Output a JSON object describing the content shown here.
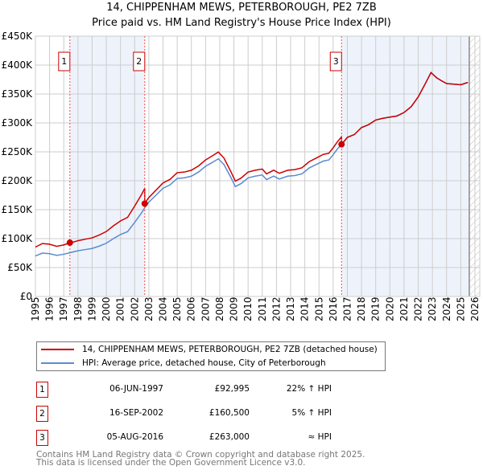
{
  "chart_data": {
    "type": "line",
    "title": "14, CHIPPENHAM MEWS, PETERBOROUGH, PE2 7ZB",
    "subtitle": "Price paid vs. HM Land Registry's House Price Index (HPI)",
    "xlim": [
      1995,
      2026
    ],
    "ylim": [
      0,
      450000
    ],
    "y_ticks": [
      {
        "v": 0,
        "label": "£0"
      },
      {
        "v": 50000,
        "label": "£50K"
      },
      {
        "v": 100000,
        "label": "£100K"
      },
      {
        "v": 150000,
        "label": "£150K"
      },
      {
        "v": 200000,
        "label": "£200K"
      },
      {
        "v": 250000,
        "label": "£250K"
      },
      {
        "v": 300000,
        "label": "£300K"
      },
      {
        "v": 350000,
        "label": "£350K"
      },
      {
        "v": 400000,
        "label": "£400K"
      },
      {
        "v": 450000,
        "label": "£450K"
      }
    ],
    "x_ticks": [
      "1995",
      "1996",
      "1997",
      "1998",
      "1999",
      "2000",
      "2001",
      "2002",
      "2003",
      "2004",
      "2005",
      "2006",
      "2007",
      "2008",
      "2009",
      "2010",
      "2011",
      "2012",
      "2013",
      "2014",
      "2015",
      "2016",
      "2017",
      "2018",
      "2019",
      "2020",
      "2021",
      "2022",
      "2023",
      "2024",
      "2025",
      "2026"
    ],
    "data_end": 2025.6,
    "colors": {
      "property": "#cc0000",
      "hpi": "#5b8bd0",
      "shade": "#eef3fb"
    },
    "hpi_series": [
      [
        1995.0,
        70000
      ],
      [
        1995.5,
        75000
      ],
      [
        1996.0,
        74000
      ],
      [
        1996.5,
        71000
      ],
      [
        1997.0,
        73000
      ],
      [
        1997.5,
        76000
      ],
      [
        1998.0,
        79000
      ],
      [
        1998.5,
        81000
      ],
      [
        1999.0,
        83000
      ],
      [
        1999.5,
        87000
      ],
      [
        2000.0,
        92000
      ],
      [
        2000.5,
        100000
      ],
      [
        2001.0,
        107000
      ],
      [
        2001.5,
        112000
      ],
      [
        2002.0,
        128000
      ],
      [
        2002.5,
        145000
      ],
      [
        2002.75,
        155000
      ],
      [
        2003.0,
        163000
      ],
      [
        2003.5,
        175000
      ],
      [
        2004.0,
        187000
      ],
      [
        2004.5,
        193000
      ],
      [
        2005.0,
        204000
      ],
      [
        2005.5,
        205000
      ],
      [
        2006.0,
        208000
      ],
      [
        2006.5,
        215000
      ],
      [
        2007.0,
        225000
      ],
      [
        2007.5,
        232000
      ],
      [
        2007.9,
        238000
      ],
      [
        2008.3,
        228000
      ],
      [
        2008.8,
        205000
      ],
      [
        2009.1,
        190000
      ],
      [
        2009.5,
        195000
      ],
      [
        2010.0,
        205000
      ],
      [
        2010.5,
        208000
      ],
      [
        2011.0,
        210000
      ],
      [
        2011.3,
        202000
      ],
      [
        2011.8,
        208000
      ],
      [
        2012.2,
        203000
      ],
      [
        2012.8,
        208000
      ],
      [
        2013.3,
        209000
      ],
      [
        2013.8,
        212000
      ],
      [
        2014.3,
        222000
      ],
      [
        2014.8,
        228000
      ],
      [
        2015.3,
        234000
      ],
      [
        2015.7,
        236000
      ],
      [
        2016.0,
        245000
      ],
      [
        2016.3,
        255000
      ],
      [
        2016.6,
        263000
      ],
      [
        2017.0,
        275000
      ],
      [
        2017.5,
        280000
      ],
      [
        2018.0,
        292000
      ],
      [
        2018.5,
        297000
      ],
      [
        2019.0,
        305000
      ],
      [
        2019.5,
        308000
      ],
      [
        2020.0,
        310000
      ],
      [
        2020.5,
        312000
      ],
      [
        2021.0,
        318000
      ],
      [
        2021.5,
        328000
      ],
      [
        2022.0,
        345000
      ],
      [
        2022.5,
        368000
      ],
      [
        2022.9,
        387000
      ],
      [
        2023.3,
        378000
      ],
      [
        2023.7,
        372000
      ],
      [
        2024.0,
        368000
      ],
      [
        2024.5,
        367000
      ],
      [
        2025.0,
        366000
      ],
      [
        2025.5,
        370000
      ]
    ],
    "sales": [
      {
        "n": "1",
        "t": 1997.43,
        "price": 92995,
        "hpi_at": 76200
      },
      {
        "n": "2",
        "t": 2002.71,
        "price": 160500,
        "hpi_at": 153000
      },
      {
        "n": "3",
        "t": 2016.59,
        "price": 263000,
        "hpi_at": 263000
      }
    ]
  },
  "legend": {
    "property": "14, CHIPPENHAM MEWS, PETERBOROUGH, PE2 7ZB (detached house)",
    "hpi": "HPI: Average price, detached house, City of Peterborough"
  },
  "transactions": [
    {
      "n": "1",
      "date": "06-JUN-1997",
      "price": "£92,995",
      "rel": "22% ↑ HPI"
    },
    {
      "n": "2",
      "date": "16-SEP-2002",
      "price": "£160,500",
      "rel": "5% ↑ HPI"
    },
    {
      "n": "3",
      "date": "05-AUG-2016",
      "price": "£263,000",
      "rel": "≈ HPI"
    }
  ],
  "footer": {
    "line1": "Contains HM Land Registry data © Crown copyright and database right 2025.",
    "line2": "This data is licensed under the Open Government Licence v3.0."
  }
}
